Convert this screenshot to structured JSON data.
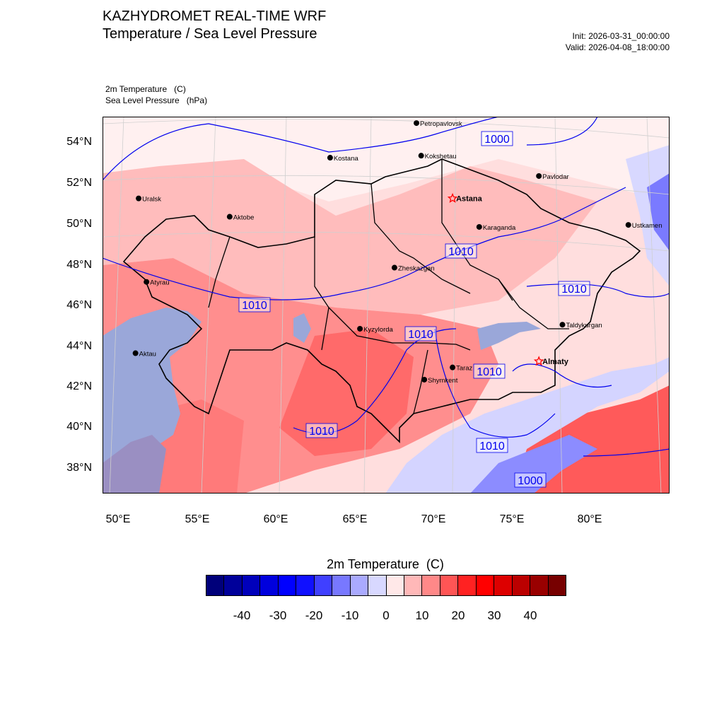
{
  "title": {
    "line1": "KAZHYDROMET REAL-TIME WRF",
    "line2": "Temperature / Sea Level Pressure"
  },
  "run": {
    "init": "Init: 2026-03-31_00:00:00",
    "valid": "Valid: 2026-04-08_18:00:00"
  },
  "variables": {
    "temperature": "2m Temperature   (C)",
    "pressure": "Sea Level Pressure   (hPa)"
  },
  "lat_labels": [
    "54°N",
    "52°N",
    "50°N",
    "48°N",
    "46°N",
    "44°N",
    "42°N",
    "40°N",
    "38°N"
  ],
  "lon_labels": [
    "50°E",
    "55°E",
    "60°E",
    "65°E",
    "70°E",
    "75°E",
    "80°E"
  ],
  "isobar_labels": [
    "1000",
    "1010",
    "1010",
    "1010",
    "1010",
    "1010",
    "1010",
    "1010",
    "1000"
  ],
  "cities": [
    {
      "name": "Petropavlovsk",
      "lon": 69.1,
      "lat": 54.9,
      "capital": false
    },
    {
      "name": "Kostana",
      "lon": 63.6,
      "lat": 53.2,
      "capital": false
    },
    {
      "name": "Kokshetau",
      "lon": 69.4,
      "lat": 53.3,
      "capital": false
    },
    {
      "name": "Pavlodar",
      "lon": 76.9,
      "lat": 52.3,
      "capital": false
    },
    {
      "name": "Uralsk",
      "lon": 51.4,
      "lat": 51.2,
      "capital": false
    },
    {
      "name": "Astana",
      "lon": 71.4,
      "lat": 51.2,
      "capital": true
    },
    {
      "name": "Ustkamen",
      "lon": 82.6,
      "lat": 49.9,
      "capital": false
    },
    {
      "name": "Aktobe",
      "lon": 57.2,
      "lat": 50.3,
      "capital": false
    },
    {
      "name": "Karaganda",
      "lon": 73.1,
      "lat": 49.8,
      "capital": false
    },
    {
      "name": "Atyrau",
      "lon": 51.9,
      "lat": 47.1,
      "capital": false
    },
    {
      "name": "Zheskazgan",
      "lon": 67.7,
      "lat": 47.8,
      "capital": false
    },
    {
      "name": "Taldykurgan",
      "lon": 78.4,
      "lat": 45.0,
      "capital": false
    },
    {
      "name": "Aktau",
      "lon": 51.2,
      "lat": 43.6,
      "capital": false
    },
    {
      "name": "Kyzylorda",
      "lon": 65.5,
      "lat": 44.8,
      "capital": false
    },
    {
      "name": "Almaty",
      "lon": 76.9,
      "lat": 43.2,
      "capital": true
    },
    {
      "name": "Taraz",
      "lon": 71.4,
      "lat": 42.9,
      "capital": false
    },
    {
      "name": "Shymkent",
      "lon": 69.6,
      "lat": 42.3,
      "capital": false
    }
  ],
  "colorbar": {
    "title": "2m Temperature  (C)",
    "labels": [
      "-40",
      "-30",
      "-20",
      "-10",
      "0",
      "10",
      "20",
      "30",
      "40"
    ],
    "colors": [
      "#00007a",
      "#00009a",
      "#0000bb",
      "#0000dd",
      "#0000ff",
      "#1010ff",
      "#4040ff",
      "#7878ff",
      "#aaaaff",
      "#d8d8ff",
      "#ffe8e8",
      "#ffb8b8",
      "#ff8888",
      "#ff5555",
      "#ff2222",
      "#ff0000",
      "#dd0000",
      "#bb0000",
      "#990000",
      "#770000"
    ]
  },
  "palette": {
    "ocean": "#9aa7d9",
    "isobar": "#0000ee",
    "capital_star": "#ff0000",
    "land_warm": "#ffb3b3",
    "land_hot": "#ff6666"
  }
}
